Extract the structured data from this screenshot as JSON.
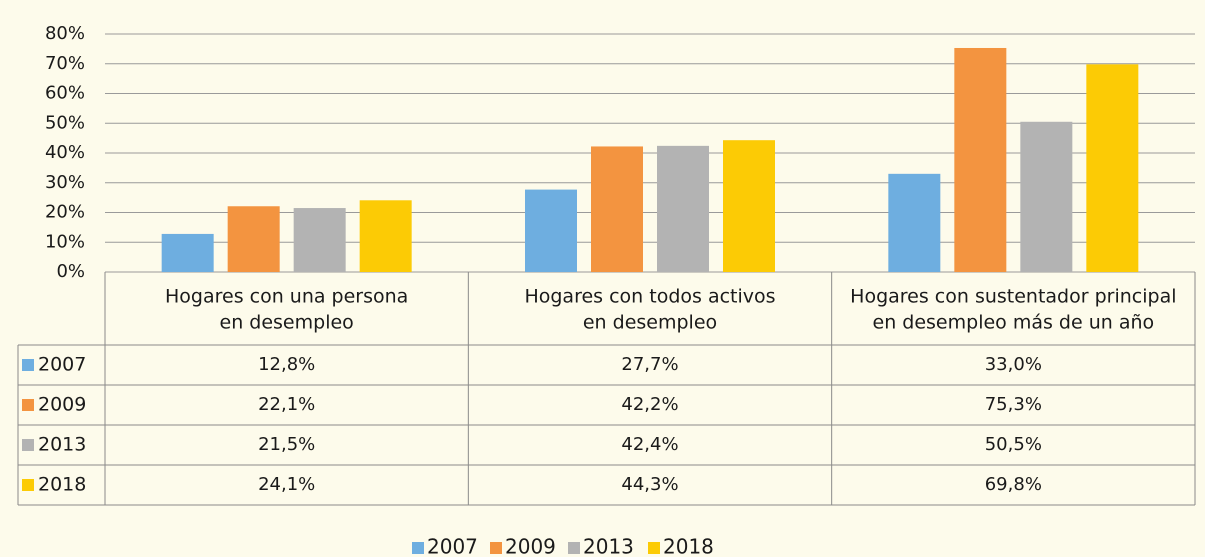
{
  "chart_data": {
    "type": "bar",
    "categories": [
      [
        "Hogares con una persona",
        "en desempleo"
      ],
      [
        "Hogares con todos activos",
        "en desempleo"
      ],
      [
        "Hogares con sustentador principal",
        "en desempleo más de un año"
      ]
    ],
    "series": [
      {
        "name": "2007",
        "color": "#6eaee0",
        "values": [
          12.8,
          27.7,
          33.0
        ],
        "value_labels": [
          "12,8%",
          "27,7%",
          "33,0%"
        ]
      },
      {
        "name": "2009",
        "color": "#f39440",
        "values": [
          22.1,
          42.2,
          75.3
        ],
        "value_labels": [
          "22,1%",
          "42,2%",
          "75,3%"
        ]
      },
      {
        "name": "2013",
        "color": "#b3b3b3",
        "values": [
          21.5,
          42.4,
          50.5
        ],
        "value_labels": [
          "21,5%",
          "42,4%",
          "50,5%"
        ]
      },
      {
        "name": "2018",
        "color": "#fccb05",
        "values": [
          24.1,
          44.3,
          69.8
        ],
        "value_labels": [
          "24,1%",
          "44,3%",
          "69,8%"
        ]
      }
    ],
    "ylim": [
      0,
      80
    ],
    "yticks": [
      {
        "value": 0,
        "label": "0%"
      },
      {
        "value": 10,
        "label": "10%"
      },
      {
        "value": 20,
        "label": "20%"
      },
      {
        "value": 30,
        "label": "30%"
      },
      {
        "value": 40,
        "label": "40%"
      },
      {
        "value": 50,
        "label": "50%"
      },
      {
        "value": 60,
        "label": "60%"
      },
      {
        "value": 70,
        "label": "70%"
      },
      {
        "value": 80,
        "label": "80%"
      }
    ],
    "grid": true
  }
}
